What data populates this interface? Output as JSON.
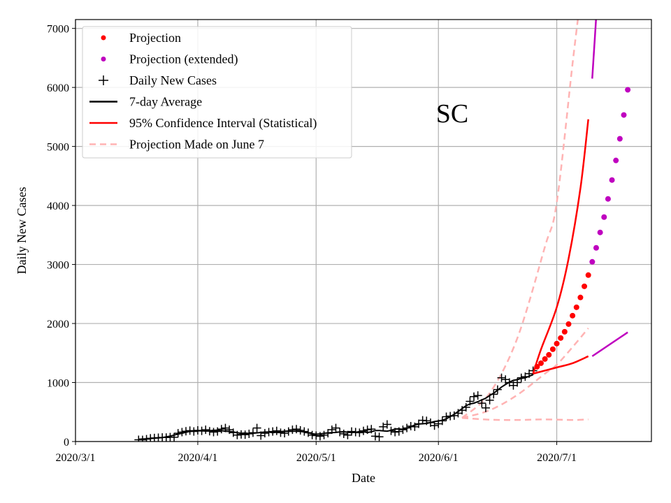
{
  "chart_data": {
    "type": "line",
    "title": "SC",
    "xlabel": "Date",
    "ylabel": "Daily New Cases",
    "xlim": [
      "2020-03-01",
      "2020-07-25"
    ],
    "ylim": [
      0,
      7150
    ],
    "grid": true,
    "legend_placement": "top-left",
    "x_ticks": [
      "2020/3/1",
      "2020/4/1",
      "2020/5/1",
      "2020/6/1",
      "2020/7/1"
    ],
    "x_tick_dates": [
      "2020-03-01",
      "2020-04-01",
      "2020-05-01",
      "2020-06-01",
      "2020-07-01"
    ],
    "y_ticks": [
      0,
      1000,
      2000,
      3000,
      4000,
      5000,
      6000,
      7000
    ],
    "legend": [
      {
        "label": "Projection",
        "marker": "dot",
        "color": "#ff0000"
      },
      {
        "label": "Projection (extended)",
        "marker": "dot",
        "color": "#bf00bf"
      },
      {
        "label": "Daily New Cases",
        "marker": "plus",
        "color": "#000000"
      },
      {
        "label": "7-day Average",
        "marker": "line",
        "color": "#000000"
      },
      {
        "label": "95% Confidence Interval (Statistical)",
        "marker": "line",
        "color": "#ff0000"
      },
      {
        "label": "Projection Made on June 7",
        "marker": "dashed",
        "color": "#ffb3b3"
      }
    ],
    "daily_cases": {
      "start_date": "2020-03-17",
      "values": [
        30,
        28,
        40,
        55,
        60,
        65,
        70,
        68,
        75,
        72,
        140,
        160,
        175,
        185,
        170,
        190,
        180,
        200,
        175,
        160,
        170,
        210,
        230,
        200,
        150,
        110,
        120,
        115,
        130,
        150,
        230,
        100,
        140,
        160,
        170,
        180,
        150,
        140,
        170,
        200,
        210,
        190,
        170,
        150,
        110,
        100,
        90,
        110,
        140,
        200,
        230,
        160,
        130,
        110,
        170,
        160,
        150,
        180,
        200,
        210,
        90,
        80,
        250,
        290,
        180,
        160,
        170,
        200,
        230,
        260,
        250,
        300,
        360,
        350,
        320,
        270,
        300,
        350,
        420,
        430,
        440,
        480,
        530,
        580,
        680,
        760,
        780,
        650,
        570,
        700,
        800,
        880,
        1080,
        1050,
        1000,
        950,
        1000,
        1080,
        1100,
        1150,
        1200
      ]
    },
    "projection": {
      "start_date": "2020-06-26",
      "values": [
        1268,
        1327,
        1398,
        1469,
        1564,
        1659,
        1754,
        1860,
        1990,
        2133,
        2275,
        2441,
        2630,
        2820
      ]
    },
    "projection_extended": {
      "start_date": "2020-07-10",
      "values": [
        3045,
        3282,
        3543,
        3803,
        4111,
        4431,
        4763,
        5130,
        5533,
        5960
      ]
    },
    "ci_upper": {
      "dates": [
        "2020-06-25",
        "2020-06-27",
        "2020-07-01",
        "2020-07-04",
        "2020-07-07",
        "2020-07-09"
      ],
      "values": [
        1150,
        1560,
        2275,
        3100,
        4290,
        5460
      ]
    },
    "ci_lower": {
      "dates": [
        "2020-06-25",
        "2020-07-01",
        "2020-07-05",
        "2020-07-09"
      ],
      "values": [
        1150,
        1255,
        1327,
        1445
      ]
    },
    "ci_upper_extended": {
      "dates": [
        "2020-07-10",
        "2020-07-11"
      ],
      "values": [
        6150,
        7200
      ]
    },
    "ci_lower_extended": {
      "dates": [
        "2020-07-10",
        "2020-07-19"
      ],
      "values": [
        1445,
        1850
      ]
    },
    "june7_projection": [
      {
        "dates": [
          "2020-06-07",
          "2020-06-14",
          "2020-06-21",
          "2020-06-28",
          "2020-07-01",
          "2020-07-05",
          "2020-07-07"
        ],
        "values": [
          400,
          820,
          1750,
          3300,
          4050,
          6400,
          7500
        ]
      },
      {
        "dates": [
          "2020-06-07",
          "2020-06-14",
          "2020-06-21",
          "2020-06-28",
          "2020-07-01",
          "2020-07-05",
          "2020-07-09"
        ],
        "values": [
          400,
          530,
          790,
          1150,
          1300,
          1600,
          1920
        ]
      },
      {
        "dates": [
          "2020-06-07",
          "2020-06-14",
          "2020-06-21",
          "2020-06-28",
          "2020-07-05",
          "2020-07-09"
        ],
        "values": [
          400,
          370,
          365,
          375,
          365,
          375
        ]
      }
    ]
  }
}
